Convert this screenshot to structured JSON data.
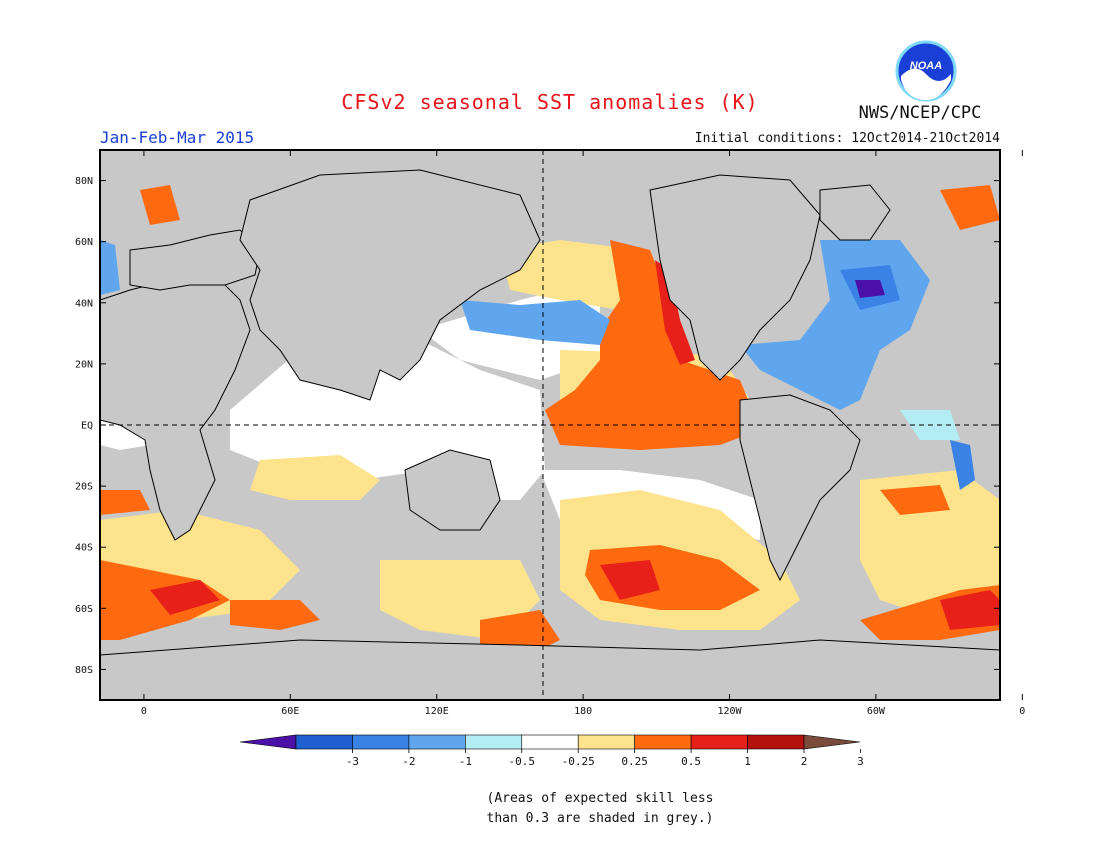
{
  "header": {
    "title": "CFSv2 seasonal SST anomalies (K)",
    "period": "Jan-Feb-Mar 2015",
    "initial_conditions": "Initial conditions: 12Oct2014-21Oct2014",
    "agency": "NWS/NCEP/CPC",
    "logo_text": "NOAA"
  },
  "map": {
    "projection": "equirectangular",
    "lon_ticks": [
      "0",
      "60E",
      "120E",
      "180",
      "120W",
      "60W",
      "0"
    ],
    "lat_ticks": [
      "80N",
      "60N",
      "40N",
      "20N",
      "EQ",
      "20S",
      "40S",
      "60S",
      "80S"
    ],
    "reference_lines": [
      "equator",
      "dateline"
    ]
  },
  "colorbar": {
    "labels": [
      "-3",
      "-2",
      "-1",
      "-0.5",
      "-0.25",
      "0.25",
      "0.5",
      "1",
      "2",
      "3"
    ],
    "colors": [
      "#4a10a8",
      "#1f5fd0",
      "#3a82e6",
      "#5fa6ef",
      "#b3ecf3",
      "#ffffff",
      "#fde48c",
      "#ff6a10",
      "#e8201a",
      "#b3120f",
      "#7a4a3a"
    ]
  },
  "colors": {
    "land": "#c8c8c8",
    "ocean_neutral": "#ffffff"
  },
  "footnote": {
    "line1": "(Areas of expected skill less",
    "line2": "than 0.3 are shaded in grey.)"
  }
}
